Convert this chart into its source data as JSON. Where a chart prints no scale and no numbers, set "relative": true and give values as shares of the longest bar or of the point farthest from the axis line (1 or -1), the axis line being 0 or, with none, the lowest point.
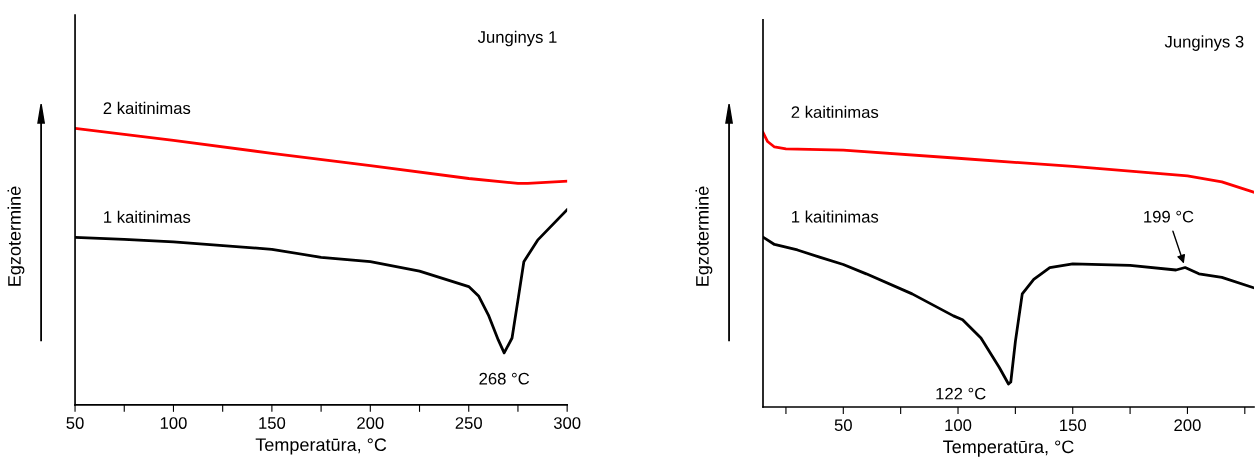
{
  "chart_data": [
    {
      "type": "line",
      "relative": true,
      "title": "Junginys 1",
      "xlabel": "Temperatūra, °C",
      "ylabel": "Egzoterminė",
      "xlim": [
        50,
        300
      ],
      "xticks": [
        50,
        {
          "value": 75,
          "label": null
        },
        100,
        {
          "value": 125,
          "label": null
        },
        150,
        {
          "value": 175,
          "label": null
        },
        200,
        {
          "value": 225,
          "label": null
        },
        250,
        {
          "value": 275,
          "label": null
        },
        300
      ],
      "tick_labels": "x",
      "marker": "none",
      "line_style": "solid",
      "series": [
        {
          "name": "2 kaitinimas",
          "color": "#ff0000",
          "x": [
            50,
            100,
            150,
            200,
            250,
            275,
            280,
            300
          ],
          "values": [
            1,
            0.957,
            0.91,
            0.866,
            0.819,
            0.801,
            0.801,
            0.809
          ]
        },
        {
          "name": "1 kaitinimas",
          "color": "#000000",
          "x": [
            50,
            75,
            100,
            150,
            175,
            200,
            225,
            250,
            255,
            260,
            265,
            268,
            272,
            275,
            278,
            285,
            300
          ],
          "values": [
            0.606,
            0.599,
            0.59,
            0.563,
            0.534,
            0.518,
            0.484,
            0.428,
            0.394,
            0.325,
            0.235,
            0.188,
            0.242,
            0.379,
            0.518,
            0.596,
            0.706
          ]
        }
      ],
      "annotations": [
        {
          "text": "268 °C",
          "x": 268,
          "y": 0.188
        }
      ]
    },
    {
      "type": "line",
      "relative": true,
      "title": "Junginys 3",
      "xlabel": "Temperatūra, °C",
      "ylabel": "Egzoterminė",
      "xlim": [
        15,
        229
      ],
      "xticks": [
        {
          "value": 25,
          "label": null
        },
        50,
        {
          "value": 75,
          "label": null
        },
        100,
        {
          "value": 125,
          "label": null
        },
        150,
        {
          "value": 175,
          "label": null
        },
        200,
        {
          "value": 225,
          "label": null
        }
      ],
      "tick_labels": "x",
      "marker": "none",
      "line_style": "solid",
      "series": [
        {
          "name": "2 kaitinimas",
          "color": "#ff0000",
          "x": [
            15,
            17,
            20,
            25,
            50,
            100,
            150,
            200,
            215,
            229
          ],
          "values": [
            1,
            0.967,
            0.947,
            0.94,
            0.936,
            0.906,
            0.876,
            0.842,
            0.82,
            0.782
          ]
        },
        {
          "name": "1 kaitinimas",
          "color": "#000000",
          "x": [
            15,
            20,
            30,
            40,
            50,
            60,
            80,
            98,
            102,
            110,
            118,
            122,
            123,
            125,
            128,
            133,
            140,
            150,
            175,
            195,
            199,
            205,
            215,
            229
          ],
          "values": [
            0.619,
            0.592,
            0.572,
            0.545,
            0.519,
            0.485,
            0.412,
            0.332,
            0.318,
            0.251,
            0.144,
            0.084,
            0.091,
            0.238,
            0.412,
            0.465,
            0.508,
            0.521,
            0.516,
            0.499,
            0.508,
            0.485,
            0.472,
            0.434
          ]
        }
      ],
      "annotations": [
        {
          "text": "122 °C",
          "x": 122,
          "y": 0.084
        },
        {
          "text": "199 °C",
          "x": 199,
          "y": 0.508
        }
      ]
    }
  ]
}
